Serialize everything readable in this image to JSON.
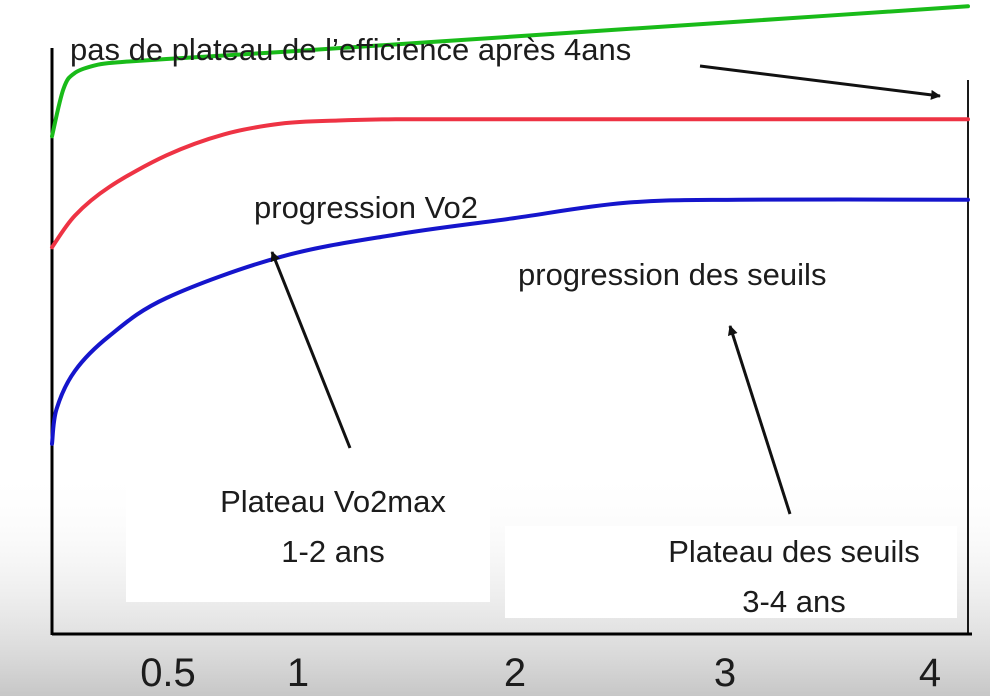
{
  "chart_data": {
    "type": "line",
    "title": "",
    "xlabel": "",
    "ylabel": "",
    "xlim": [
      0,
      4
    ],
    "ylim": [
      0,
      10
    ],
    "grid": false,
    "ticks": [
      "0.5",
      "1",
      "2",
      "3",
      "4"
    ],
    "series": [
      {
        "name": "",
        "color": "#19bb19",
        "x": [
          0,
          0.05,
          0.1,
          0.2,
          0.3,
          0.5,
          1,
          2,
          3,
          4
        ],
        "y": [
          7.85,
          8.6,
          8.85,
          8.98,
          9.02,
          9.07,
          9.18,
          9.42,
          9.66,
          9.9
        ]
      },
      {
        "name": "",
        "color": "#ee3344",
        "x": [
          0,
          0.1,
          0.25,
          0.5,
          0.75,
          1,
          1.25,
          1.5,
          2,
          3,
          4
        ],
        "y": [
          6.1,
          6.6,
          7.05,
          7.55,
          7.88,
          8.05,
          8.1,
          8.12,
          8.12,
          8.12,
          8.12
        ]
      },
      {
        "name": "",
        "color": "#1515cc",
        "x": [
          0,
          0.02,
          0.1,
          0.25,
          0.5,
          1,
          1.5,
          2,
          2.5,
          3,
          4
        ],
        "y": [
          3.0,
          3.55,
          4.15,
          4.7,
          5.3,
          5.95,
          6.3,
          6.55,
          6.8,
          6.85,
          6.85
        ]
      }
    ],
    "annotations": {
      "efficiency": "pas de plateau de l’efficience après 4ans",
      "vo2_progress": "progression Vo2",
      "threshold_progress": "progression des seuils",
      "vo2_plateau_line1": "Plateau Vo2max",
      "vo2_plateau_line2": "1-2 ans",
      "threshold_plateau_line1": "Plateau des seuils",
      "threshold_plateau_line2": "3-4 ans"
    }
  }
}
